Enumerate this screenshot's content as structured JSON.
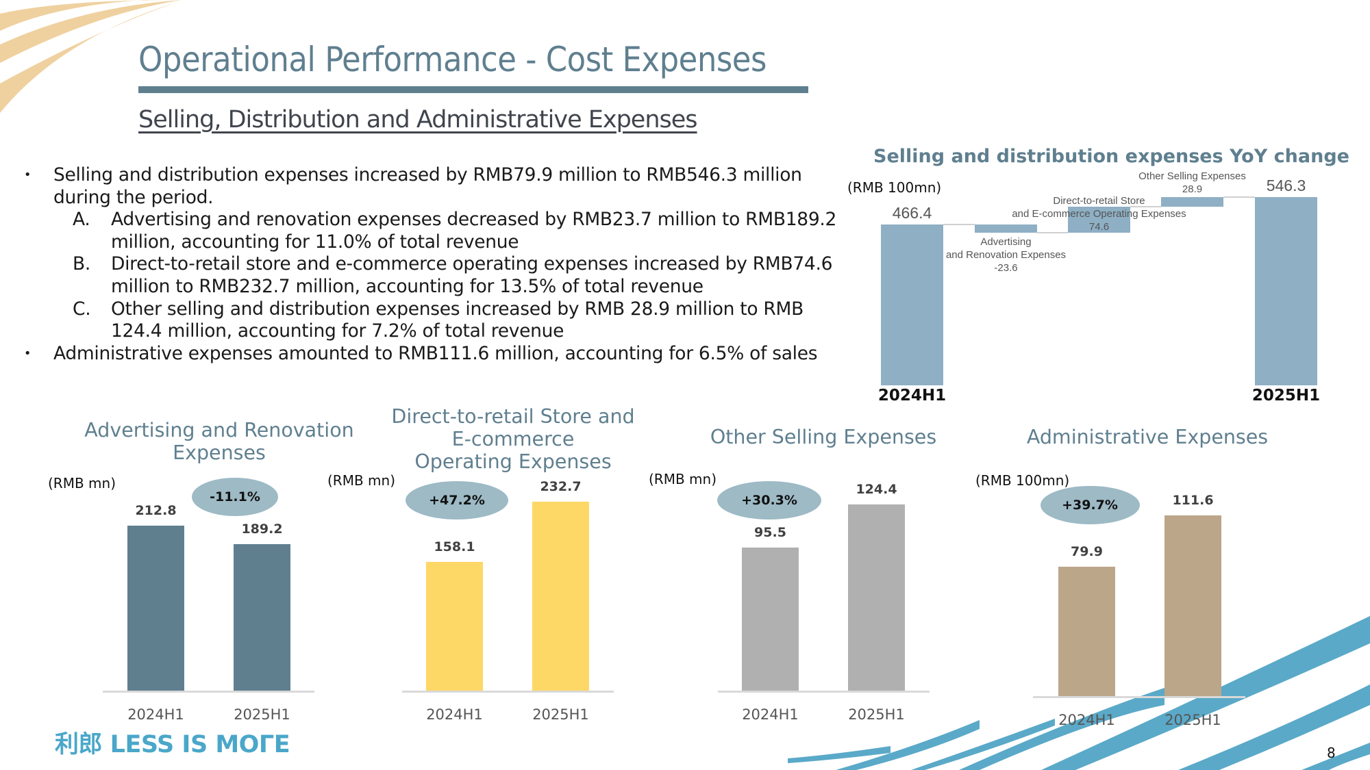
{
  "header": {
    "title": "Operational Performance - Cost Expenses",
    "subtitle": "Selling, Distribution and Administrative Expenses"
  },
  "bullets": [
    {
      "marker": "•",
      "text": "Selling and distribution expenses increased by RMB79.9 million to RMB546.3 million during the period."
    },
    {
      "marker": "A.",
      "text": "Advertising and renovation expenses decreased by RMB23.7 million to RMB189.2 million, accounting for 11.0% of total revenue",
      "sub": true
    },
    {
      "marker": "B.",
      "text": "Direct-to-retail store and e-commerce operating expenses increased by RMB74.6 million to RMB232.7 million, accounting for 13.5% of total revenue",
      "sub": true
    },
    {
      "marker": "C.",
      "text": "Other selling and distribution expenses increased by RMB 28.9 million to RMB 124.4 million, accounting for 7.2% of total revenue",
      "sub": true
    },
    {
      "marker": "•",
      "text": "Administrative expenses amounted to RMB111.6 million, accounting for 6.5% of sales"
    }
  ],
  "footer": {
    "logo_text": "利郎 LESS IS MOΓE",
    "page_number": "8"
  },
  "colors": {
    "title": "#5f7f8f",
    "waterfall_bar": "#8eafc4",
    "advertising_bar": "#5f7f8f",
    "direct_retail_bar": "#fdd866",
    "other_selling_bar": "#b0b0b0",
    "admin_bar": "#bca68a",
    "badge": "#9dbac5"
  },
  "chart_data": [
    {
      "id": "waterfall",
      "type": "bar",
      "subtype": "waterfall",
      "title": "Selling and distribution expenses YoY change",
      "unit_label": "(RMB 100mn)",
      "categories": [
        "2024H1",
        "Advertising and Renovation Expenses",
        "Direct-to-retail Store and E-commerce Operating Expenses",
        "Other Selling Expenses",
        "2025H1"
      ],
      "steps": [
        {
          "label": "2024H1",
          "kind": "total",
          "value": 466.4,
          "display": "466.4",
          "annotation": ""
        },
        {
          "label_lines": [
            "Advertising",
            "and Renovation Expenses"
          ],
          "kind": "delta",
          "value": -23.6,
          "display": "-23.6"
        },
        {
          "label_lines": [
            "Direct-to-retail Store",
            "and E-commerce Operating Expenses"
          ],
          "kind": "delta",
          "value": 74.6,
          "display": "74.6"
        },
        {
          "label_lines": [
            "Other Selling Expenses"
          ],
          "kind": "delta",
          "value": 28.9,
          "display": "28.9"
        },
        {
          "label": "2025H1",
          "kind": "total",
          "value": 546.3,
          "display": "546.3"
        }
      ],
      "xlabels": [
        "2024H1",
        "2025H1"
      ],
      "ylim": [
        0,
        546.3
      ]
    },
    {
      "id": "advertising",
      "type": "bar",
      "title_lines": [
        "Advertising and Renovation",
        "Expenses"
      ],
      "unit_label": "(RMB mn)",
      "categories": [
        "2024H1",
        "2025H1"
      ],
      "values": [
        212.8,
        189.2
      ],
      "value_labels": [
        "212.8",
        "189.2"
      ],
      "change_badge": "-11.1%",
      "color": "#5f7f8f"
    },
    {
      "id": "direct_retail",
      "type": "bar",
      "title_lines": [
        "Direct-to-retail Store and",
        "E-commerce",
        "Operating Expenses"
      ],
      "unit_label": "(RMB mn)",
      "categories": [
        "2024H1",
        "2025H1"
      ],
      "values": [
        158.1,
        232.7
      ],
      "value_labels": [
        "158.1",
        "232.7"
      ],
      "change_badge": "+47.2%",
      "color": "#fdd866"
    },
    {
      "id": "other_selling",
      "type": "bar",
      "title_lines": [
        "Other Selling Expenses"
      ],
      "unit_label": "(RMB mn)",
      "categories": [
        "2024H1",
        "2025H1"
      ],
      "values": [
        95.5,
        124.4
      ],
      "value_labels": [
        "95.5",
        "124.4"
      ],
      "change_badge": "+30.3%",
      "color": "#b0b0b0"
    },
    {
      "id": "administrative",
      "type": "bar",
      "title_lines": [
        "Administrative Expenses"
      ],
      "unit_label": "(RMB 100mn)",
      "categories": [
        "2024H1",
        "2025H1"
      ],
      "values": [
        79.9,
        111.6
      ],
      "value_labels": [
        "79.9",
        "111.6"
      ],
      "change_badge": "+39.7%",
      "color": "#bca68a"
    }
  ]
}
